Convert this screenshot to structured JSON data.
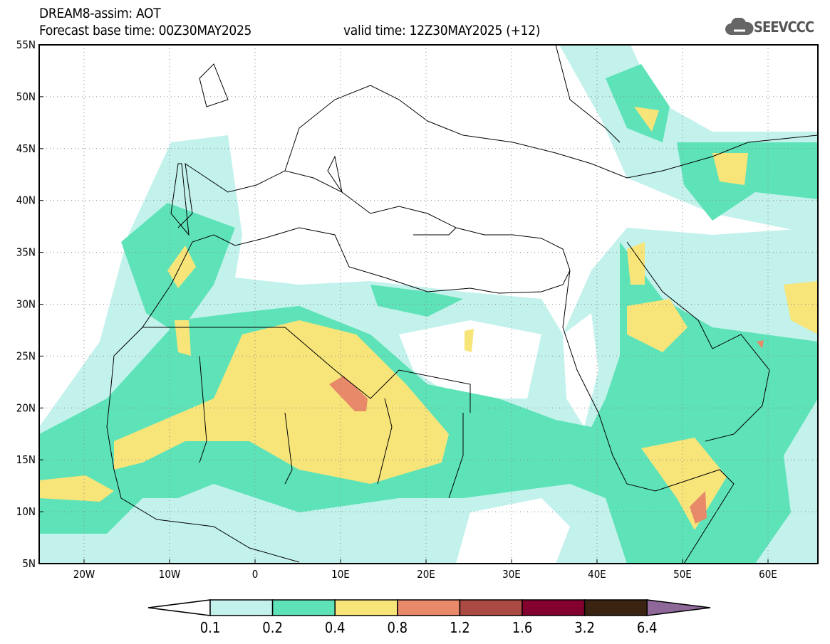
{
  "header": {
    "title": "DREAM8-assim: AOT",
    "base_time": "Forecast base time: 00Z30MAY2025",
    "valid_time": "valid time: 12Z30MAY2025 (+12)"
  },
  "logo": {
    "text": "SEEVCCC",
    "icon": "cloud-icon"
  },
  "map": {
    "lat_labels": [
      "55N",
      "50N",
      "45N",
      "40N",
      "35N",
      "30N",
      "25N",
      "20N",
      "15N",
      "10N",
      "5N"
    ],
    "lat_values": [
      55,
      50,
      45,
      40,
      35,
      30,
      25,
      20,
      15,
      10,
      5
    ],
    "lon_labels": [
      "20W",
      "10W",
      "0",
      "10E",
      "20E",
      "30E",
      "40E",
      "50E",
      "60E"
    ],
    "lon_values": [
      -20,
      -10,
      0,
      10,
      20,
      30,
      40,
      50,
      60
    ]
  },
  "colorbar": {
    "labels": [
      "0.1",
      "0.2",
      "0.4",
      "0.8",
      "1.2",
      "1.6",
      "3.2",
      "6.4"
    ],
    "colors": [
      "#ffffff",
      "#c3f2ec",
      "#5ee3b8",
      "#f7e57a",
      "#e8896a",
      "#ab4a42",
      "#83002f",
      "#3a2311",
      "#8e6898"
    ]
  }
}
